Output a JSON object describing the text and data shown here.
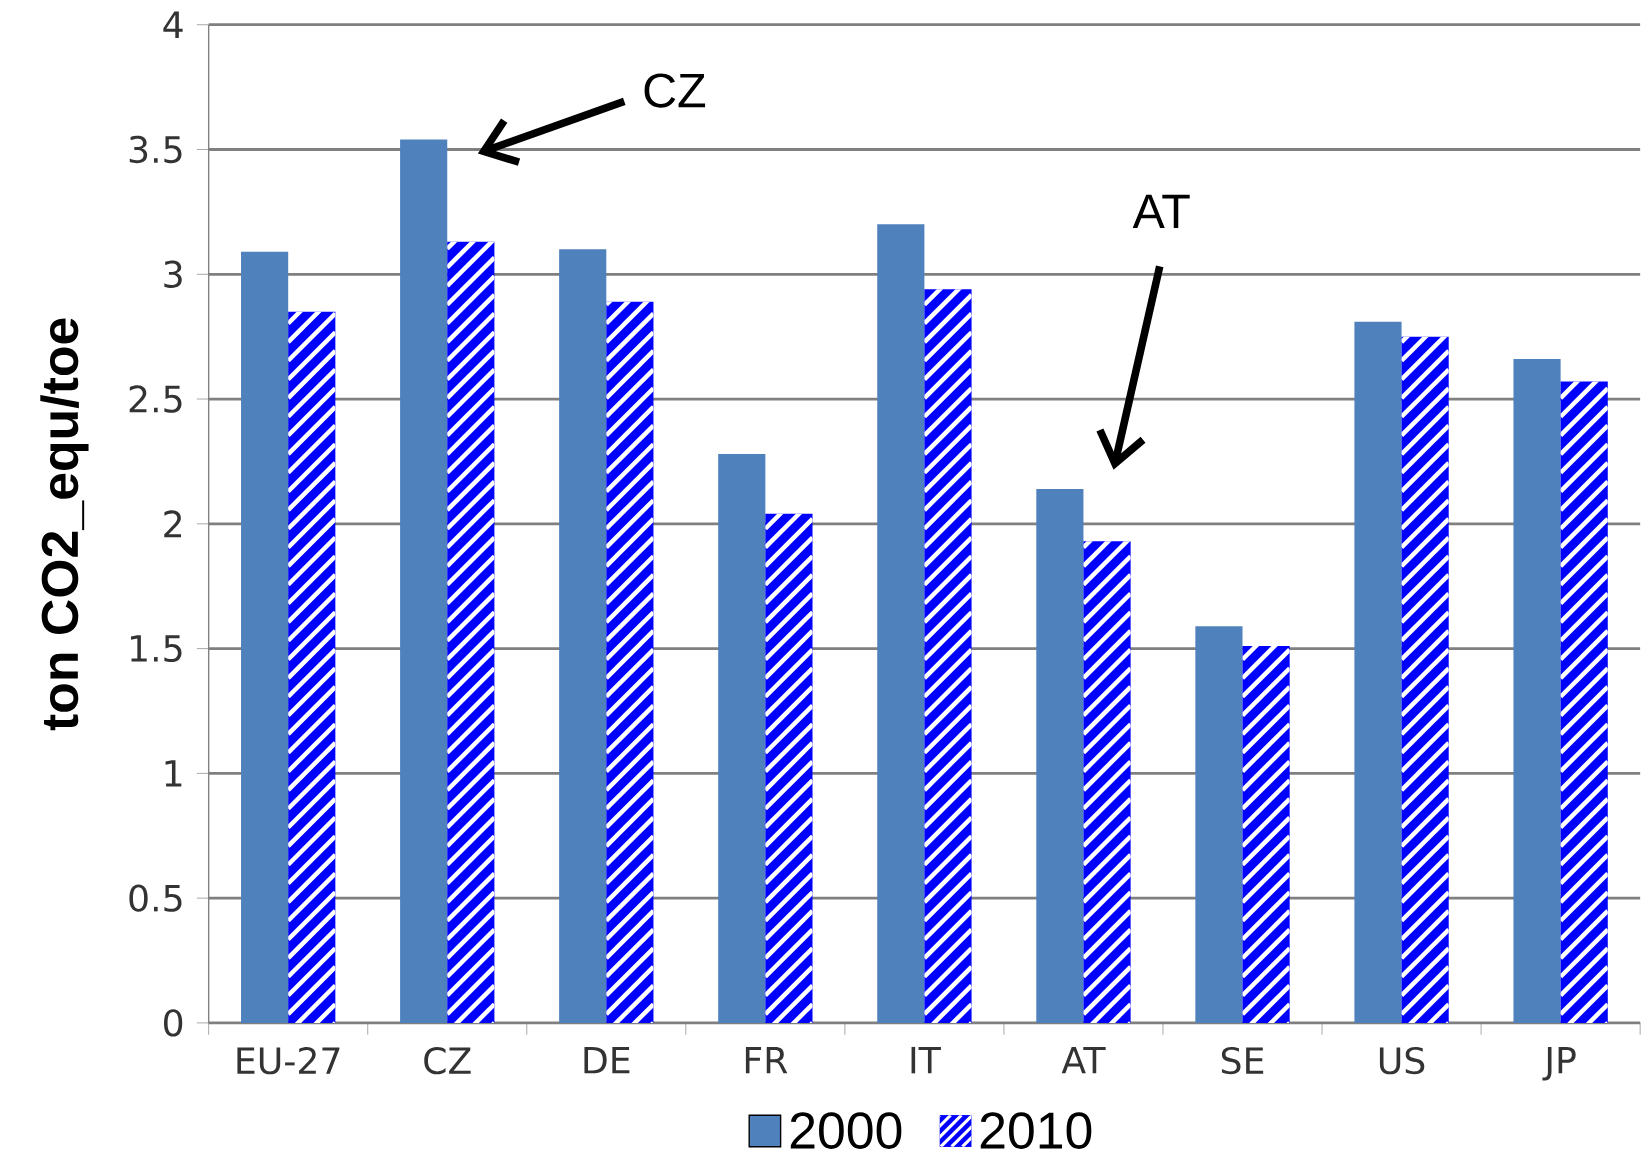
{
  "chart_data": {
    "type": "bar",
    "ylabel": "ton CO2_equ/toe",
    "categories": [
      "EU-27",
      "CZ",
      "DE",
      "FR",
      "IT",
      "AT",
      "SE",
      "US",
      "JP"
    ],
    "series": [
      {
        "name": "2000",
        "color": "#4f81bd",
        "values": [
          3.09,
          3.54,
          3.1,
          2.28,
          3.2,
          2.14,
          1.59,
          2.81,
          2.66
        ]
      },
      {
        "name": "2010",
        "color": "#0000ff",
        "values": [
          2.85,
          3.13,
          2.89,
          2.04,
          2.94,
          1.93,
          1.51,
          2.75,
          2.57
        ]
      }
    ],
    "ylim": [
      0,
      4
    ],
    "yticks": [
      0,
      0.5,
      1,
      1.5,
      2,
      2.5,
      3,
      3.5,
      4
    ],
    "grid": "y",
    "legend": "bottom",
    "annotations": [
      "CZ",
      "AT"
    ]
  }
}
